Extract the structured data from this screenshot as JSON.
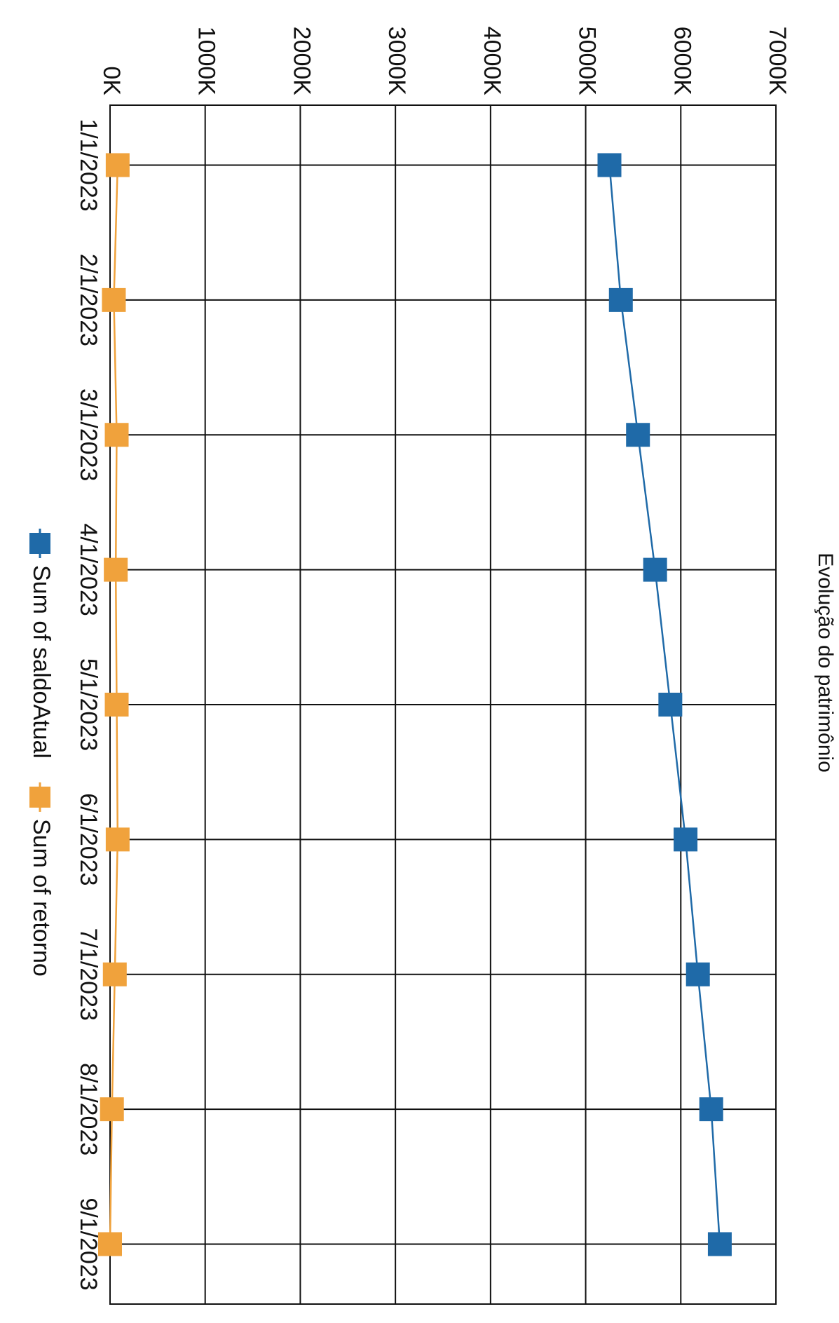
{
  "chart_data": {
    "type": "line",
    "title": "Evolução do patrimônio",
    "xlabel": "",
    "ylabel": "",
    "categories": [
      "1/1/2023",
      "2/1/2023",
      "3/1/2023",
      "4/1/2023",
      "5/1/2023",
      "6/1/2023",
      "7/1/2023",
      "8/1/2023",
      "9/1/2023"
    ],
    "ylim": [
      0,
      7000000
    ],
    "yticks": [
      0,
      1000000,
      2000000,
      3000000,
      4000000,
      5000000,
      6000000,
      7000000
    ],
    "ytick_labels": [
      "0K",
      "1000K",
      "2000K",
      "3000K",
      "4000K",
      "5000K",
      "6000K",
      "7000K"
    ],
    "grid": true,
    "legend_position": "bottom",
    "series": [
      {
        "name": "Sum of saldoAtual",
        "color": "#1f6aa8",
        "values": [
          5250000,
          5370000,
          5550000,
          5730000,
          5890000,
          6050000,
          6180000,
          6320000,
          6410000
        ]
      },
      {
        "name": "Sum of retorno",
        "color": "#f0a23c",
        "values": [
          80000,
          40000,
          70000,
          60000,
          70000,
          80000,
          50000,
          20000,
          0
        ]
      }
    ]
  }
}
